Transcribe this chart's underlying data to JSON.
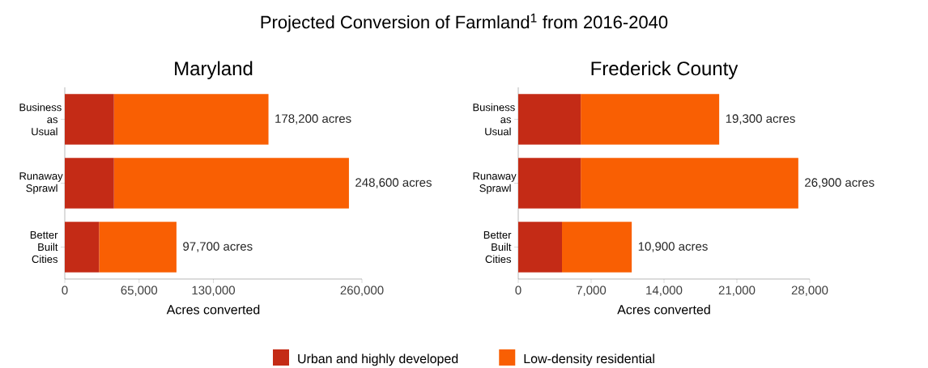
{
  "chart_data": [
    {
      "type": "bar",
      "title": "Projected Conversion of Farmland$^{1}$ from 2016-2040",
      "subtitle": "Maryland",
      "xlabel": "Acres converted",
      "orientation": "horizontal",
      "stacked": true,
      "legend": "bottom",
      "categories": [
        "Business as Usual",
        "Runaway Sprawl",
        "Better Built Cities"
      ],
      "series": [
        {
          "name": "Urban and highly developed",
          "color": "#c42b16",
          "values": [
            43000,
            43000,
            30000
          ]
        },
        {
          "name": "Low-density residential",
          "color": "#f95f03",
          "values": [
            135200,
            205600,
            67700
          ]
        }
      ],
      "xlim": [
        0,
        260000
      ],
      "xticks": [
        0,
        {
          "value": 65000,
          "label": "65,000"
        },
        {
          "value": 130000,
          "label": "130,000"
        },
        {
          "value": 260000,
          "label": "260,000"
        }
      ],
      "totals": [
        "178,200 acres",
        "248,600 acres",
        "97,700 acres"
      ]
    },
    {
      "type": "bar",
      "title": "Frederick County",
      "xlabel": "Acres converted",
      "orientation": "horizontal",
      "stacked": true,
      "categories": [
        "Business as Usual",
        "Runaway Sprawl",
        "Better Built Cities"
      ],
      "series": [
        {
          "color": "#c42b16",
          "values": [
            6000,
            6000,
            4200
          ]
        },
        {
          "color": "#f95f03",
          "values": [
            13300,
            20900,
            6700
          ]
        }
      ],
      "xlim": [
        0,
        28000
      ],
      "xticks": [
        0,
        {
          "value": 7000,
          "label": "7,000"
        },
        {
          "value": 14000,
          "label": "14,000"
        },
        {
          "value": 21000,
          "label": "21,000"
        },
        {
          "value": 28000,
          "label": "28,000"
        }
      ],
      "totals": [
        "19,300 acres",
        "26,900 acres",
        "10,900 acres"
      ]
    }
  ]
}
